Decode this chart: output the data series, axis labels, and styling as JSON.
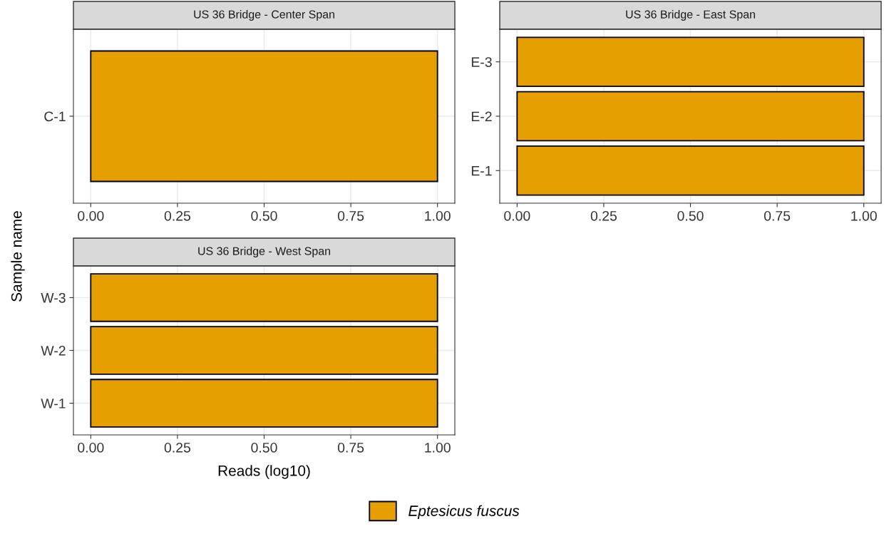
{
  "chart_data": [
    {
      "type": "bar",
      "orientation": "horizontal",
      "title": "US 36 Bridge - Center Span",
      "ylabel": "Sample name",
      "categories": [
        "C-1"
      ],
      "series": [
        {
          "color": "#e69f00",
          "values": [
            1.0
          ]
        }
      ],
      "xlim": [
        -0.05,
        1.05
      ],
      "xticks": [
        {
          "value": 0,
          "label": "0.00"
        },
        {
          "value": 0.25,
          "label": "0.25"
        },
        {
          "value": 0.5,
          "label": "0.50"
        },
        {
          "value": 0.75,
          "label": "0.75"
        },
        {
          "value": 1,
          "label": "1.00"
        }
      ],
      "grid": true
    },
    {
      "type": "bar",
      "orientation": "horizontal",
      "title": "US 36 Bridge - East Span",
      "categories": [
        "E-3",
        "E-2",
        "E-1"
      ],
      "series": [
        {
          "color": "#e69f00",
          "values": [
            1.0,
            1.0,
            1.0
          ]
        }
      ],
      "xlim": [
        -0.05,
        1.05
      ],
      "xticks": [
        {
          "value": 0,
          "label": "0.00"
        },
        {
          "value": 0.25,
          "label": "0.25"
        },
        {
          "value": 0.5,
          "label": "0.50"
        },
        {
          "value": 0.75,
          "label": "0.75"
        },
        {
          "value": 1,
          "label": "1.00"
        }
      ],
      "grid": true
    },
    {
      "type": "bar",
      "orientation": "horizontal",
      "title": "US 36 Bridge - West Span",
      "xlabel": "Reads (log10)",
      "categories": [
        "W-3",
        "W-2",
        "W-1"
      ],
      "series": [
        {
          "name": "Eptesicus fuscus",
          "color": "#e69f00",
          "values": [
            1.0,
            1.0,
            1.0
          ]
        }
      ],
      "xlim": [
        -0.05,
        1.05
      ],
      "xticks": [
        {
          "value": 0,
          "label": "0.00"
        },
        {
          "value": 0.25,
          "label": "0.25"
        },
        {
          "value": 0.5,
          "label": "0.50"
        },
        {
          "value": 0.75,
          "label": "0.75"
        },
        {
          "value": 1,
          "label": "1.00"
        }
      ],
      "grid": true,
      "legend": "bottom"
    }
  ]
}
